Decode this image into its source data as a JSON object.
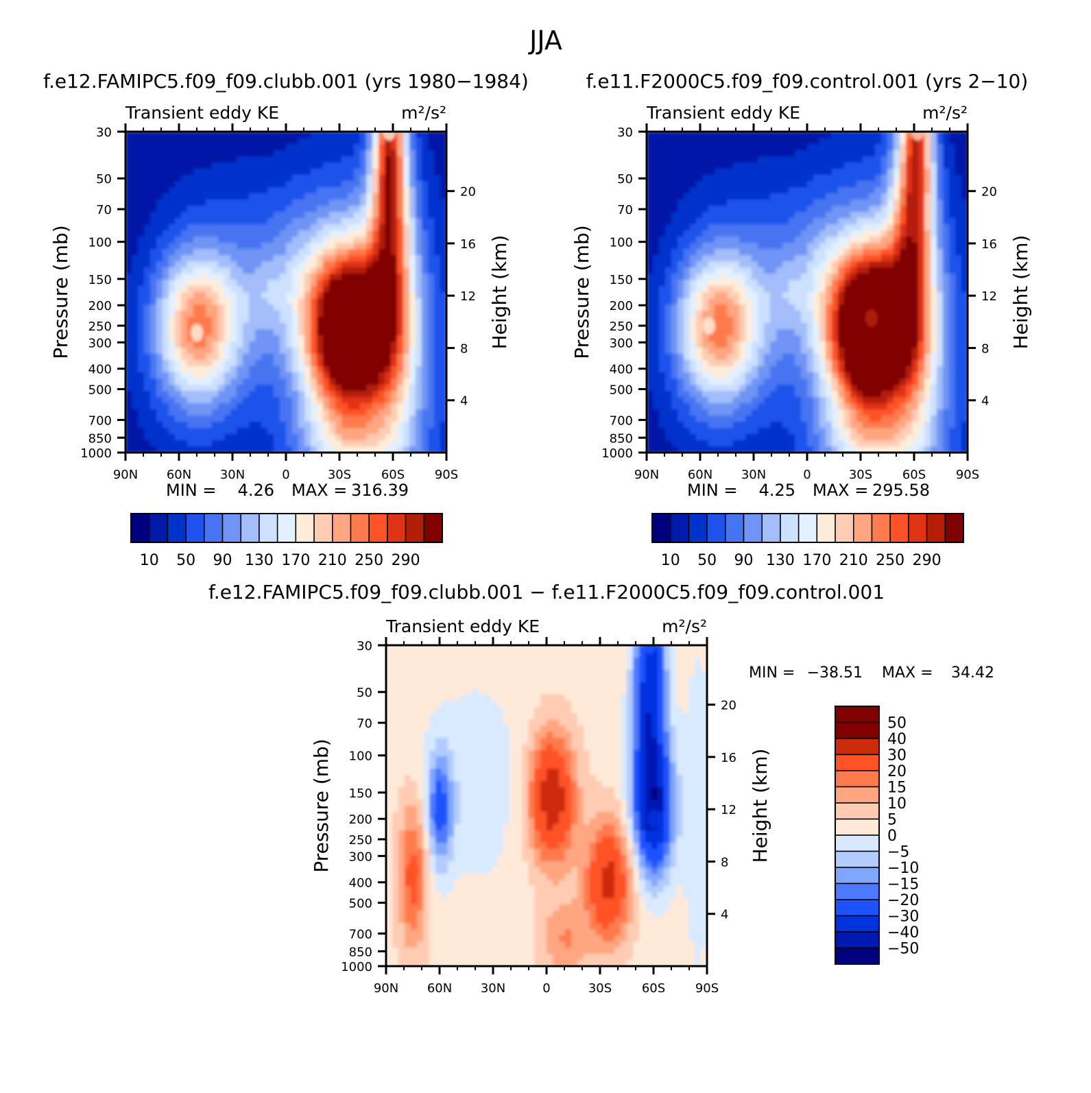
{
  "figure": {
    "title": "JJA",
    "diff_title": "f.e12.FAMIPC5.f09_f09.clubb.001 − f.e11.F2000C5.f09_f09.control.001"
  },
  "colors": {
    "abs_scale": [
      "#00007f",
      "#0019a6",
      "#0033cc",
      "#1f52eb",
      "#4775f2",
      "#7094f5",
      "#a3bdfa",
      "#cce0ff",
      "#e3f0ff",
      "#ffedd9",
      "#ffccb3",
      "#ffa680",
      "#ff7a4d",
      "#ff5226",
      "#e03314",
      "#b31e08",
      "#800000"
    ],
    "diff_scale": [
      "#00007f",
      "#0019b3",
      "#0033e0",
      "#1f52ff",
      "#4d7aff",
      "#80a6ff",
      "#b3ccff",
      "#d9eaff",
      "#ffead9",
      "#ffccb3",
      "#ffa680",
      "#ff7a4d",
      "#ff5226",
      "#cc2a0a",
      "#800000"
    ]
  },
  "chart_data": [
    {
      "type": "heatmap",
      "title": "f.e12.FAMIPC5.f09_f09.clubb.001 (yrs 1980−1984)",
      "left_string": "Transient eddy KE",
      "units": "m²/s²",
      "ylabel": "Pressure (mb)",
      "y2label": "Height (km)",
      "x_ticks": [
        "90N",
        "60N",
        "30N",
        "0",
        "30S",
        "60S",
        "90S"
      ],
      "y_ticks": [
        "30",
        "50",
        "70",
        "100",
        "150",
        "200",
        "250",
        "300",
        "400",
        "500",
        "700",
        "850",
        "1000"
      ],
      "y2_ticks": [
        "20",
        "16",
        "12",
        "8",
        "4"
      ],
      "xlim": [
        90,
        -90
      ],
      "ylim": [
        1000,
        30
      ],
      "y_scale": "log",
      "min_label": "MIN =",
      "min_value": "4.26",
      "max_label": "MAX =",
      "max_value": "316.39",
      "colorbar_labels": [
        "10",
        "50",
        "90",
        "130",
        "170",
        "210",
        "250",
        "290"
      ],
      "features": [
        {
          "lat": -36,
          "p": 250,
          "value": 316
        },
        {
          "lat": 50,
          "p": 270,
          "value": 175
        },
        {
          "lat": -58,
          "p": 30,
          "value": 175
        }
      ]
    },
    {
      "type": "heatmap",
      "title": "f.e11.F2000C5.f09_f09.control.001 (yrs 2−10)",
      "left_string": "Transient eddy KE",
      "units": "m²/s²",
      "ylabel": "Pressure (mb)",
      "y2label": "Height (km)",
      "x_ticks": [
        "90N",
        "60N",
        "30N",
        "0",
        "30S",
        "60S",
        "90S"
      ],
      "y_ticks": [
        "30",
        "50",
        "70",
        "100",
        "150",
        "200",
        "250",
        "300",
        "400",
        "500",
        "700",
        "850",
        "1000"
      ],
      "y2_ticks": [
        "20",
        "16",
        "12",
        "8",
        "4"
      ],
      "xlim": [
        90,
        -90
      ],
      "ylim": [
        1000,
        30
      ],
      "y_scale": "log",
      "min_label": "MIN =",
      "min_value": "4.25",
      "max_label": "MAX =",
      "max_value": "295.58",
      "colorbar_labels": [
        "10",
        "50",
        "90",
        "130",
        "170",
        "210",
        "250",
        "290"
      ],
      "features": [
        {
          "lat": -36,
          "p": 230,
          "value": 295
        },
        {
          "lat": 55,
          "p": 250,
          "value": 180
        },
        {
          "lat": -62,
          "p": 30,
          "value": 190
        }
      ]
    },
    {
      "type": "heatmap",
      "left_string": "Transient eddy KE",
      "units": "m²/s²",
      "ylabel": "Pressure (mb)",
      "y2label": "Height (km)",
      "x_ticks": [
        "90N",
        "60N",
        "30N",
        "0",
        "30S",
        "60S",
        "90S"
      ],
      "y_ticks": [
        "30",
        "50",
        "70",
        "100",
        "150",
        "200",
        "250",
        "300",
        "400",
        "500",
        "700",
        "850",
        "1000"
      ],
      "y2_ticks": [
        "20",
        "16",
        "12",
        "8",
        "4"
      ],
      "xlim": [
        90,
        -90
      ],
      "ylim": [
        1000,
        30
      ],
      "y_scale": "log",
      "min_label": "MIN =",
      "min_value": "−38.51",
      "max_label": "MAX =",
      "max_value": "34.42",
      "colorbar_labels": [
        "50",
        "40",
        "30",
        "20",
        "15",
        "10",
        "5",
        "0",
        "−5",
        "−10",
        "−15",
        "−20",
        "−30",
        "−40",
        "−50"
      ],
      "features": [
        {
          "lat": -3,
          "p": 160,
          "value": 34
        },
        {
          "lat": -35,
          "p": 380,
          "value": 30
        },
        {
          "lat": -60,
          "p": 200,
          "value": -38
        },
        {
          "lat": -58,
          "p": 30,
          "value": -30
        },
        {
          "lat": 75,
          "p": 350,
          "value": 20
        },
        {
          "lat": 60,
          "p": 200,
          "value": -25
        }
      ]
    }
  ]
}
